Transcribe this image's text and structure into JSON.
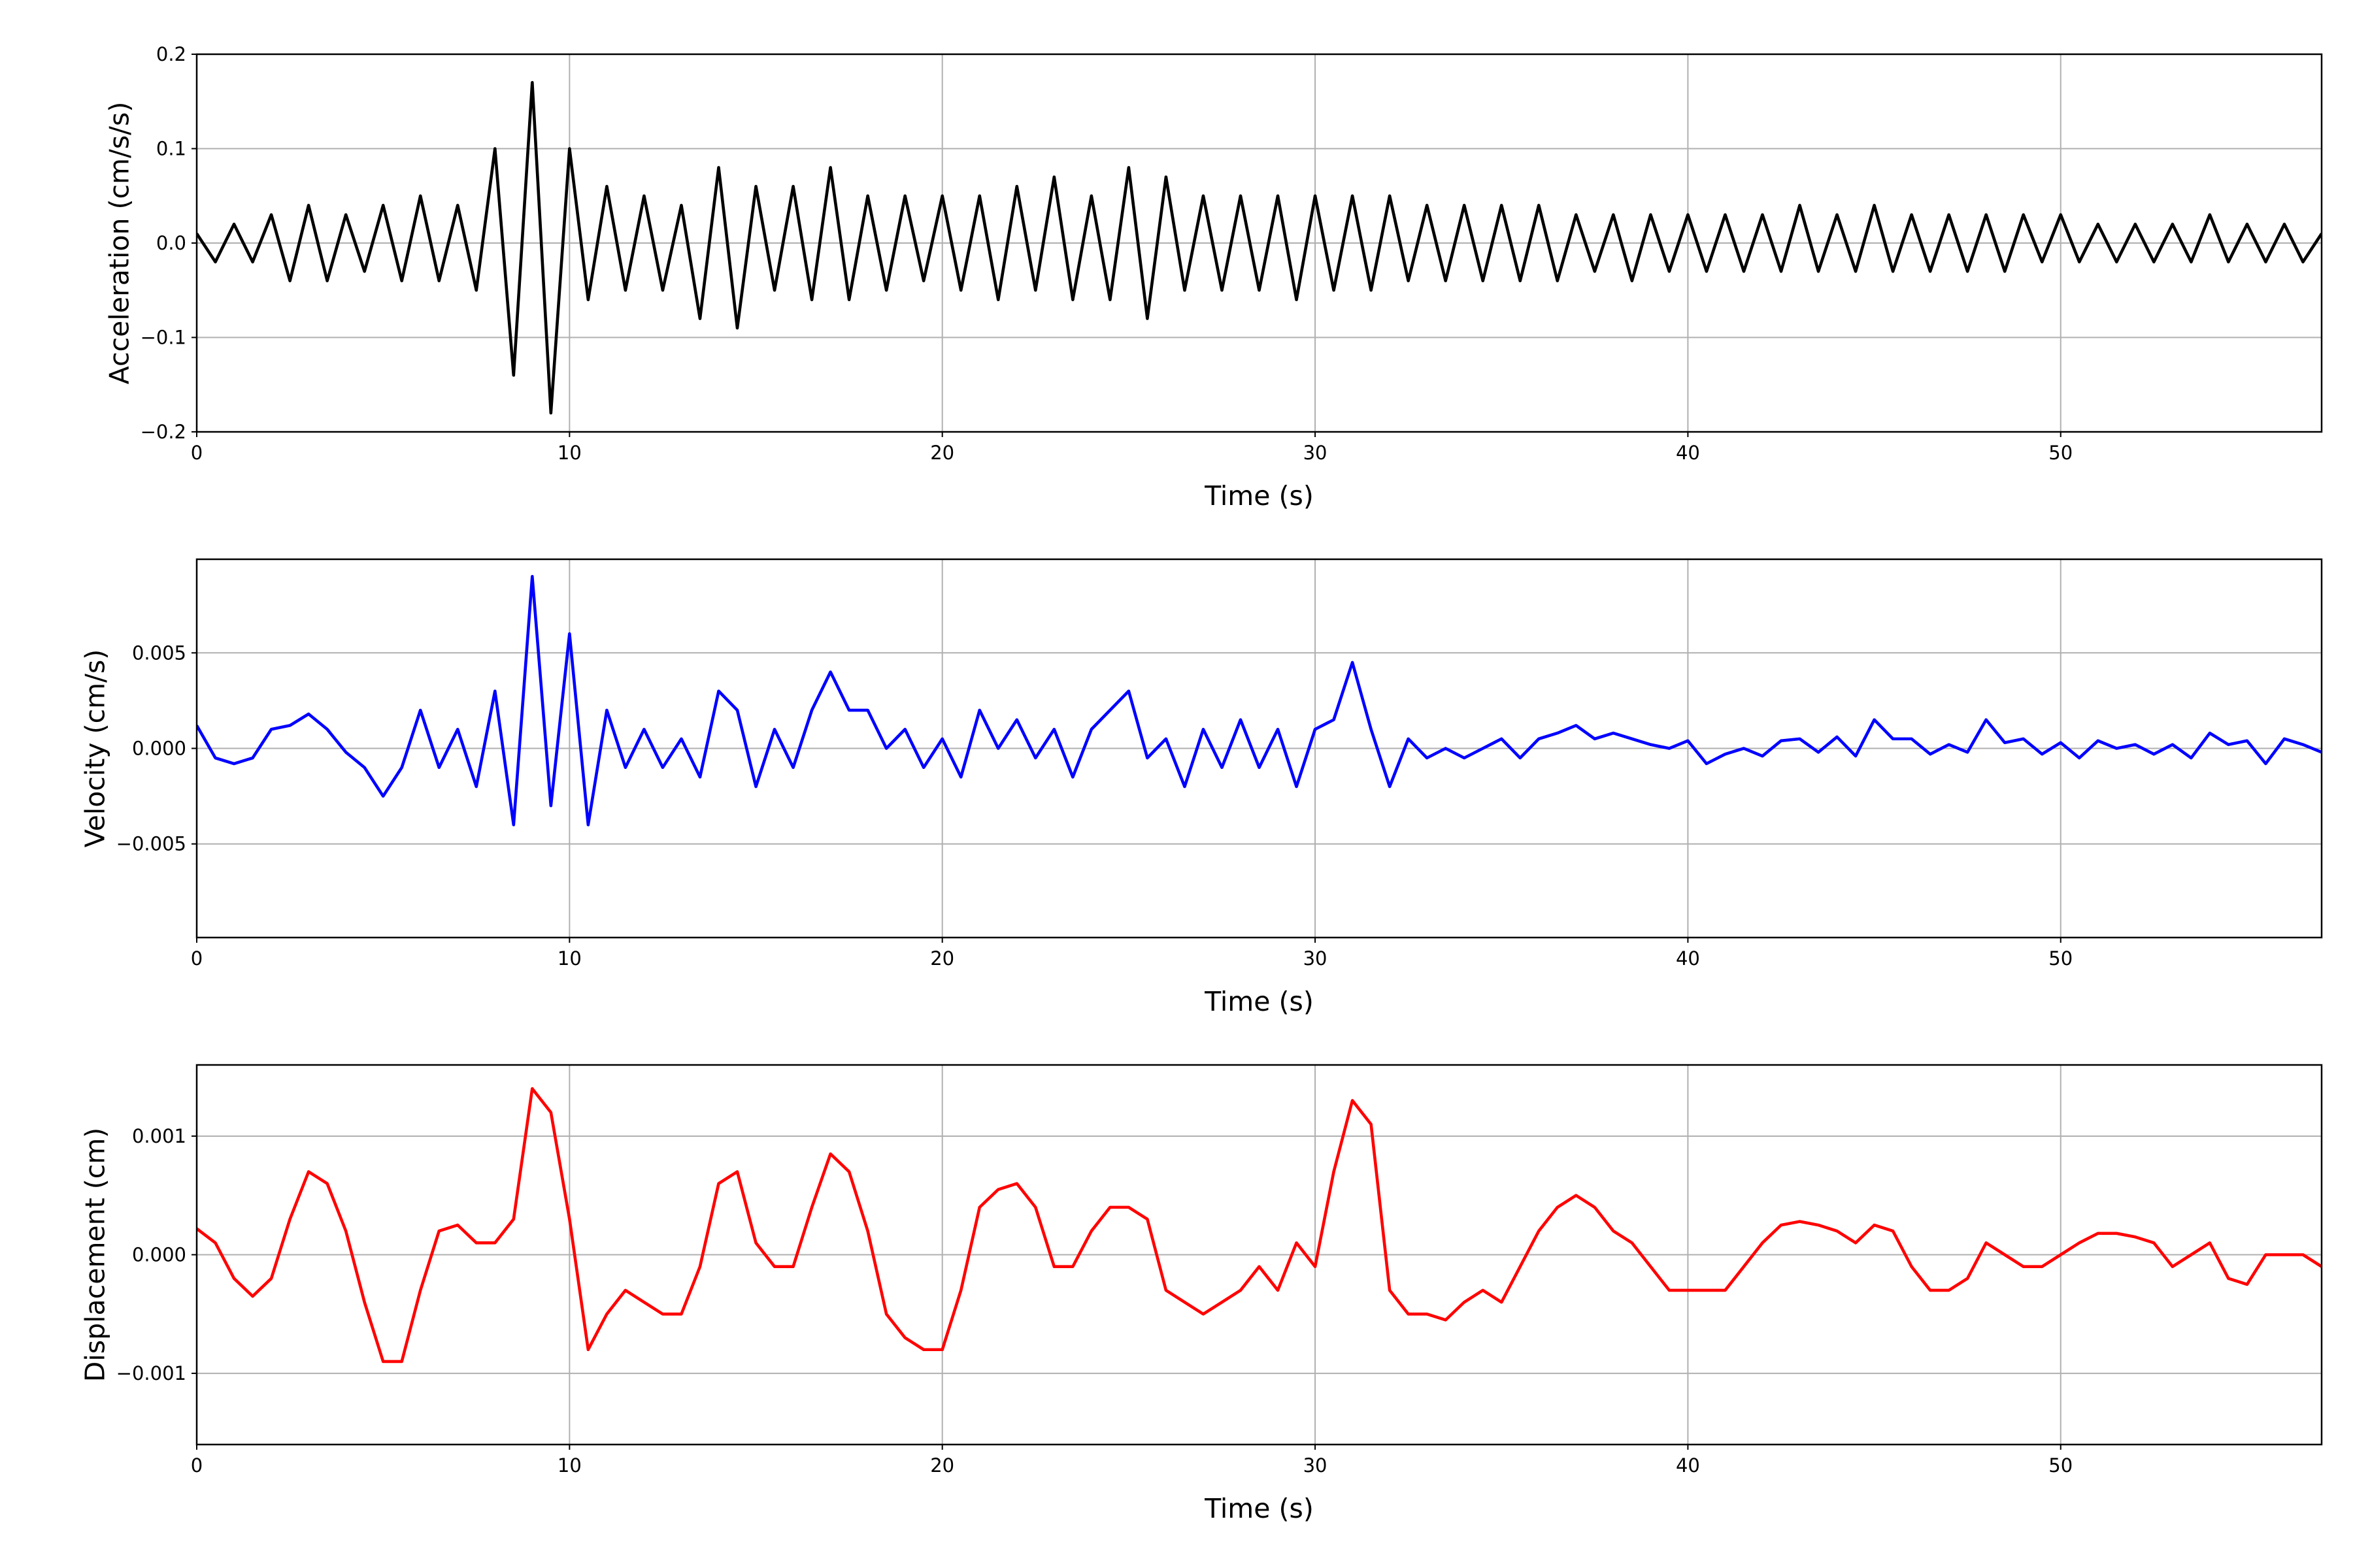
{
  "chart_data": [
    {
      "type": "line",
      "xlabel": "Time (s)",
      "ylabel": "Acceleration (cm/s/s)",
      "xlim": [
        0,
        57
      ],
      "xticks": [
        0,
        10,
        20,
        30,
        40,
        50
      ],
      "ylim": [
        -0.2,
        0.2
      ],
      "yticks": [
        {
          "value": -0.2,
          "label": "−0.2"
        },
        {
          "value": -0.1,
          "label": "−0.1"
        },
        {
          "value": 0,
          "label": "0.0"
        },
        0.1,
        0.2
      ],
      "grid": true,
      "x": [
        0,
        0.5,
        1,
        1.5,
        2,
        2.5,
        3,
        3.5,
        4,
        4.5,
        5,
        5.5,
        6,
        6.5,
        7,
        7.5,
        8,
        8.5,
        9,
        9.5,
        10,
        10.5,
        11,
        11.5,
        12,
        12.5,
        13,
        13.5,
        14,
        14.5,
        15,
        15.5,
        16,
        16.5,
        17,
        17.5,
        18,
        18.5,
        19,
        19.5,
        20,
        20.5,
        21,
        21.5,
        22,
        22.5,
        23,
        23.5,
        24,
        24.5,
        25,
        25.5,
        26,
        26.5,
        27,
        27.5,
        28,
        28.5,
        29,
        29.5,
        30,
        30.5,
        31,
        31.5,
        32,
        32.5,
        33,
        33.5,
        34,
        34.5,
        35,
        35.5,
        36,
        36.5,
        37,
        37.5,
        38,
        38.5,
        39,
        39.5,
        40,
        40.5,
        41,
        41.5,
        42,
        42.5,
        43,
        43.5,
        44,
        44.5,
        45,
        45.5,
        46,
        46.5,
        47,
        47.5,
        48,
        48.5,
        49,
        49.5,
        50,
        50.5,
        51,
        51.5,
        52,
        52.5,
        53,
        53.5,
        54,
        54.5,
        55,
        55.5,
        56,
        56.5,
        57
      ],
      "series": [
        {
          "color": "#000000",
          "values": [
            0.01,
            -0.02,
            0.02,
            -0.02,
            0.03,
            -0.04,
            0.04,
            -0.04,
            0.03,
            -0.03,
            0.04,
            -0.04,
            0.05,
            -0.04,
            0.04,
            -0.05,
            0.1,
            -0.14,
            0.17,
            -0.18,
            0.1,
            -0.06,
            0.06,
            -0.05,
            0.05,
            -0.05,
            0.04,
            -0.08,
            0.08,
            -0.09,
            0.06,
            -0.05,
            0.06,
            -0.06,
            0.08,
            -0.06,
            0.05,
            -0.05,
            0.05,
            -0.04,
            0.05,
            -0.05,
            0.05,
            -0.06,
            0.06,
            -0.05,
            0.07,
            -0.06,
            0.05,
            -0.06,
            0.08,
            -0.08,
            0.07,
            -0.05,
            0.05,
            -0.05,
            0.05,
            -0.05,
            0.05,
            -0.06,
            0.05,
            -0.05,
            0.05,
            -0.05,
            0.05,
            -0.04,
            0.04,
            -0.04,
            0.04,
            -0.04,
            0.04,
            -0.04,
            0.04,
            -0.04,
            0.03,
            -0.03,
            0.03,
            -0.04,
            0.03,
            -0.03,
            0.03,
            -0.03,
            0.03,
            -0.03,
            0.03,
            -0.03,
            0.04,
            -0.03,
            0.03,
            -0.03,
            0.04,
            -0.03,
            0.03,
            -0.03,
            0.03,
            -0.03,
            0.03,
            -0.03,
            0.03,
            -0.02,
            0.03,
            -0.02,
            0.02,
            -0.02,
            0.02,
            -0.02,
            0.02,
            -0.02,
            0.03,
            -0.02,
            0.02,
            -0.02,
            0.02,
            -0.02,
            0.01
          ]
        }
      ]
    },
    {
      "type": "line",
      "xlabel": "Time (s)",
      "ylabel": "Velocity (cm/s)",
      "xlim": [
        0,
        57
      ],
      "xticks": [
        0,
        10,
        20,
        30,
        40,
        50
      ],
      "ylim": [
        -0.0099,
        0.0099
      ],
      "yticks": [
        {
          "value": -0.005,
          "label": "−0.005"
        },
        {
          "value": 0,
          "label": "0.000"
        },
        0.005
      ],
      "grid": true,
      "x": [
        0,
        0.5,
        1,
        1.5,
        2,
        2.5,
        3,
        3.5,
        4,
        4.5,
        5,
        5.5,
        6,
        6.5,
        7,
        7.5,
        8,
        8.5,
        9,
        9.5,
        10,
        10.5,
        11,
        11.5,
        12,
        12.5,
        13,
        13.5,
        14,
        14.5,
        15,
        15.5,
        16,
        16.5,
        17,
        17.5,
        18,
        18.5,
        19,
        19.5,
        20,
        20.5,
        21,
        21.5,
        22,
        22.5,
        23,
        23.5,
        24,
        24.5,
        25,
        25.5,
        26,
        26.5,
        27,
        27.5,
        28,
        28.5,
        29,
        29.5,
        30,
        30.5,
        31,
        31.5,
        32,
        32.5,
        33,
        33.5,
        34,
        34.5,
        35,
        35.5,
        36,
        36.5,
        37,
        37.5,
        38,
        38.5,
        39,
        39.5,
        40,
        40.5,
        41,
        41.5,
        42,
        42.5,
        43,
        43.5,
        44,
        44.5,
        45,
        45.5,
        46,
        46.5,
        47,
        47.5,
        48,
        48.5,
        49,
        49.5,
        50,
        50.5,
        51,
        51.5,
        52,
        52.5,
        53,
        53.5,
        54,
        54.5,
        55,
        55.5,
        56,
        56.5,
        57
      ],
      "series": [
        {
          "color": "#0000ff",
          "values": [
            0.0012,
            -0.0005,
            -0.0008,
            -0.0005,
            0.001,
            0.0012,
            0.0018,
            0.001,
            -0.0002,
            -0.001,
            -0.0025,
            -0.001,
            0.002,
            -0.001,
            0.001,
            -0.002,
            0.003,
            -0.004,
            0.009,
            -0.003,
            0.006,
            -0.004,
            0.002,
            -0.001,
            0.001,
            -0.001,
            0.0005,
            -0.0015,
            0.003,
            0.002,
            -0.002,
            0.001,
            -0.001,
            0.002,
            0.004,
            0.002,
            0.002,
            0,
            0.001,
            -0.001,
            0.0005,
            -0.0015,
            0.002,
            0,
            0.0015,
            -0.0005,
            0.001,
            -0.0015,
            0.001,
            0.002,
            0.003,
            -0.0005,
            0.0005,
            -0.002,
            0.001,
            -0.001,
            0.0015,
            -0.001,
            0.001,
            -0.002,
            0.001,
            0.0015,
            0.0045,
            0.001,
            -0.002,
            0.0005,
            -0.0005,
            0,
            -0.0005,
            0,
            0.0005,
            -0.0005,
            0.0005,
            0.0008,
            0.0012,
            0.0005,
            0.0008,
            0.0005,
            0.0002,
            0,
            0.0004,
            -0.0008,
            -0.0003,
            0,
            -0.0004,
            0.0004,
            0.0005,
            -0.0002,
            0.0006,
            -0.0004,
            0.0015,
            0.0005,
            0.0005,
            -0.0003,
            0.0002,
            -0.0002,
            0.0015,
            0.0003,
            0.0005,
            -0.0003,
            0.0003,
            -0.0005,
            0.0004,
            0,
            0.0002,
            -0.0003,
            0.0002,
            -0.0005,
            0.0008,
            0.0002,
            0.0004,
            -0.0008,
            0.0005,
            0.0002,
            -0.0002
          ]
        }
      ]
    },
    {
      "type": "line",
      "xlabel": "Time (s)",
      "ylabel": "Displacement (cm)",
      "xlim": [
        0,
        57
      ],
      "xticks": [
        0,
        10,
        20,
        30,
        40,
        50
      ],
      "ylim": [
        -0.0016,
        0.0016
      ],
      "yticks": [
        {
          "value": -0.001,
          "label": "−0.001"
        },
        {
          "value": 0,
          "label": "0.000"
        },
        0.001
      ],
      "grid": true,
      "x": [
        0,
        0.5,
        1,
        1.5,
        2,
        2.5,
        3,
        3.5,
        4,
        4.5,
        5,
        5.5,
        6,
        6.5,
        7,
        7.5,
        8,
        8.5,
        9,
        9.5,
        10,
        10.5,
        11,
        11.5,
        12,
        12.5,
        13,
        13.5,
        14,
        14.5,
        15,
        15.5,
        16,
        16.5,
        17,
        17.5,
        18,
        18.5,
        19,
        19.5,
        20,
        20.5,
        21,
        21.5,
        22,
        22.5,
        23,
        23.5,
        24,
        24.5,
        25,
        25.5,
        26,
        26.5,
        27,
        27.5,
        28,
        28.5,
        29,
        29.5,
        30,
        30.5,
        31,
        31.5,
        32,
        32.5,
        33,
        33.5,
        34,
        34.5,
        35,
        35.5,
        36,
        36.5,
        37,
        37.5,
        38,
        38.5,
        39,
        39.5,
        40,
        40.5,
        41,
        41.5,
        42,
        42.5,
        43,
        43.5,
        44,
        44.5,
        45,
        45.5,
        46,
        46.5,
        47,
        47.5,
        48,
        48.5,
        49,
        49.5,
        50,
        50.5,
        51,
        51.5,
        52,
        52.5,
        53,
        53.5,
        54,
        54.5,
        55,
        55.5,
        56,
        56.5,
        57
      ],
      "series": [
        {
          "color": "#ff0000",
          "values": [
            0.00022,
            0.0001,
            -0.0002,
            -0.00035,
            -0.0002,
            0.0003,
            0.0007,
            0.0006,
            0.0002,
            -0.0004,
            -0.0009,
            -0.0009,
            -0.0003,
            0.0002,
            0.00025,
            0.0001,
            0.0001,
            0.0003,
            0.0014,
            0.0012,
            0.0003,
            -0.0008,
            -0.0005,
            -0.0003,
            -0.0004,
            -0.0005,
            -0.0005,
            -0.0001,
            0.0006,
            0.0007,
            0.0001,
            -0.0001,
            -0.0001,
            0.0004,
            0.00085,
            0.0007,
            0.0002,
            -0.0005,
            -0.0007,
            -0.0008,
            -0.0008,
            -0.0003,
            0.0004,
            0.00055,
            0.0006,
            0.0004,
            -0.0001,
            -0.0001,
            0.0002,
            0.0004,
            0.0004,
            0.0003,
            -0.0003,
            -0.0004,
            -0.0005,
            -0.0004,
            -0.0003,
            -0.0001,
            -0.0003,
            0.0001,
            -0.0001,
            0.0007,
            0.0013,
            0.0011,
            -0.0003,
            -0.0005,
            -0.0005,
            -0.00055,
            -0.0004,
            -0.0003,
            -0.0004,
            -0.0001,
            0.0002,
            0.0004,
            0.0005,
            0.0004,
            0.0002,
            0.0001,
            -0.0001,
            -0.0003,
            -0.0003,
            -0.0003,
            -0.0003,
            -0.0001,
            0.0001,
            0.00025,
            0.00028,
            0.00025,
            0.0002,
            0.0001,
            0.00025,
            0.0002,
            -0.0001,
            -0.0003,
            -0.0003,
            -0.0002,
            0.0001,
            0,
            -0.0001,
            -0.0001,
            0,
            0.0001,
            0.00018,
            0.00018,
            0.00015,
            0.0001,
            -0.0001,
            0,
            0.0001,
            -0.0002,
            -0.00025,
            0,
            0,
            0,
            -0.0001
          ]
        }
      ]
    }
  ]
}
